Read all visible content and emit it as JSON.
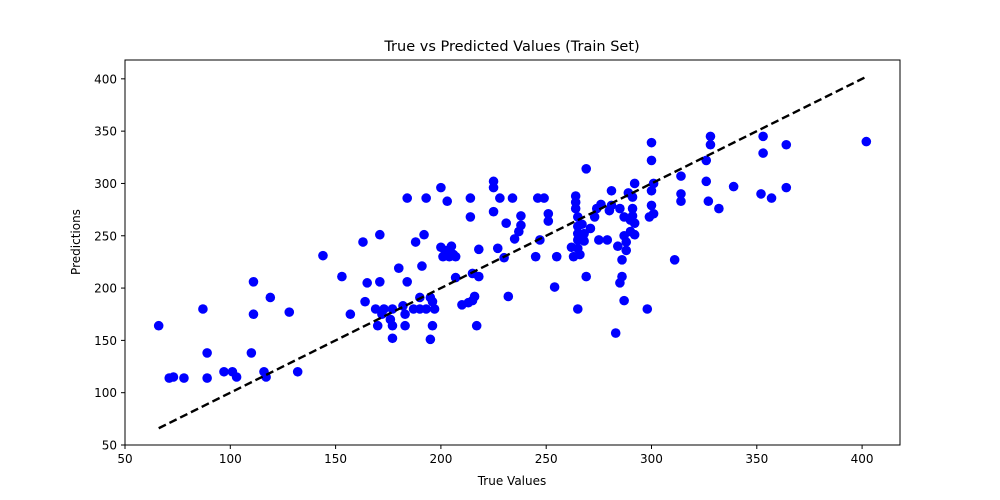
{
  "chart_data": {
    "type": "scatter",
    "title": "True vs Predicted Values (Train Set)",
    "xlabel": "True Values",
    "ylabel": "Predictions",
    "xlim": [
      50,
      418
    ],
    "ylim": [
      50,
      418
    ],
    "xticks": [
      50,
      100,
      150,
      200,
      250,
      300,
      350,
      400
    ],
    "yticks": [
      50,
      100,
      150,
      200,
      250,
      300,
      350,
      400
    ],
    "grid": false,
    "point_color": "#0000ff",
    "reference_line": {
      "style": "dashed",
      "color": "#000000",
      "from": [
        66,
        66
      ],
      "to": [
        402,
        402
      ]
    },
    "series": [
      {
        "points": [
          [
            66,
            164
          ],
          [
            71,
            114
          ],
          [
            73,
            115
          ],
          [
            78,
            114
          ],
          [
            87,
            180
          ],
          [
            89,
            138
          ],
          [
            89,
            114
          ],
          [
            97,
            120
          ],
          [
            101,
            120
          ],
          [
            103,
            115
          ],
          [
            110,
            138
          ],
          [
            111,
            206
          ],
          [
            111,
            175
          ],
          [
            116,
            120
          ],
          [
            117,
            115
          ],
          [
            119,
            191
          ],
          [
            128,
            177
          ],
          [
            132,
            120
          ],
          [
            144,
            231
          ],
          [
            153,
            211
          ],
          [
            157,
            175
          ],
          [
            163,
            244
          ],
          [
            164,
            187
          ],
          [
            165,
            205
          ],
          [
            169,
            180
          ],
          [
            170,
            164
          ],
          [
            171,
            206
          ],
          [
            171,
            251
          ],
          [
            172,
            175
          ],
          [
            173,
            180
          ],
          [
            176,
            170
          ],
          [
            177,
            164
          ],
          [
            177,
            152
          ],
          [
            177,
            180
          ],
          [
            180,
            219
          ],
          [
            182,
            183
          ],
          [
            183,
            175
          ],
          [
            183,
            164
          ],
          [
            184,
            206
          ],
          [
            184,
            286
          ],
          [
            187,
            180
          ],
          [
            188,
            244
          ],
          [
            190,
            191
          ],
          [
            190,
            180
          ],
          [
            191,
            221
          ],
          [
            192,
            251
          ],
          [
            193,
            286
          ],
          [
            193,
            180
          ],
          [
            195,
            191
          ],
          [
            195,
            151
          ],
          [
            196,
            187
          ],
          [
            196,
            164
          ],
          [
            197,
            180
          ],
          [
            200,
            296
          ],
          [
            200,
            239
          ],
          [
            201,
            230
          ],
          [
            202,
            233
          ],
          [
            203,
            283
          ],
          [
            203,
            236
          ],
          [
            204,
            230
          ],
          [
            205,
            240
          ],
          [
            206,
            232
          ],
          [
            207,
            230
          ],
          [
            207,
            210
          ],
          [
            210,
            184
          ],
          [
            213,
            186
          ],
          [
            214,
            268
          ],
          [
            214,
            286
          ],
          [
            215,
            188
          ],
          [
            215,
            214
          ],
          [
            216,
            192
          ],
          [
            217,
            164
          ],
          [
            218,
            211
          ],
          [
            218,
            237
          ],
          [
            225,
            296
          ],
          [
            225,
            302
          ],
          [
            225,
            273
          ],
          [
            227,
            238
          ],
          [
            228,
            286
          ],
          [
            230,
            229
          ],
          [
            231,
            262
          ],
          [
            232,
            192
          ],
          [
            234,
            286
          ],
          [
            235,
            247
          ],
          [
            237,
            254
          ],
          [
            238,
            260
          ],
          [
            238,
            269
          ],
          [
            245,
            230
          ],
          [
            246,
            286
          ],
          [
            247,
            246
          ],
          [
            249,
            286
          ],
          [
            251,
            264
          ],
          [
            251,
            271
          ],
          [
            254,
            201
          ],
          [
            255,
            230
          ],
          [
            262,
            239
          ],
          [
            263,
            230
          ],
          [
            264,
            288
          ],
          [
            264,
            282
          ],
          [
            264,
            276
          ],
          [
            265,
            268
          ],
          [
            265,
            259
          ],
          [
            265,
            252
          ],
          [
            265,
            246
          ],
          [
            265,
            238
          ],
          [
            265,
            180
          ],
          [
            266,
            232
          ],
          [
            267,
            261
          ],
          [
            268,
            252
          ],
          [
            268,
            245
          ],
          [
            269,
            211
          ],
          [
            269,
            314
          ],
          [
            271,
            257
          ],
          [
            273,
            268
          ],
          [
            274,
            276
          ],
          [
            275,
            246
          ],
          [
            276,
            280
          ],
          [
            279,
            246
          ],
          [
            280,
            274
          ],
          [
            281,
            293
          ],
          [
            281,
            279
          ],
          [
            283,
            157
          ],
          [
            284,
            240
          ],
          [
            285,
            276
          ],
          [
            285,
            205
          ],
          [
            286,
            227
          ],
          [
            286,
            211
          ],
          [
            287,
            268
          ],
          [
            287,
            250
          ],
          [
            287,
            188
          ],
          [
            288,
            244
          ],
          [
            288,
            236
          ],
          [
            289,
            291
          ],
          [
            290,
            254
          ],
          [
            290,
            265
          ],
          [
            291,
            287
          ],
          [
            291,
            276
          ],
          [
            291,
            269
          ],
          [
            292,
            262
          ],
          [
            292,
            300
          ],
          [
            292,
            251
          ],
          [
            298,
            180
          ],
          [
            299,
            268
          ],
          [
            300,
            339
          ],
          [
            300,
            322
          ],
          [
            300,
            293
          ],
          [
            300,
            279
          ],
          [
            301,
            271
          ],
          [
            301,
            300
          ],
          [
            311,
            227
          ],
          [
            314,
            307
          ],
          [
            314,
            290
          ],
          [
            314,
            283
          ],
          [
            326,
            322
          ],
          [
            326,
            302
          ],
          [
            327,
            283
          ],
          [
            328,
            345
          ],
          [
            328,
            337
          ],
          [
            332,
            276
          ],
          [
            339,
            297
          ],
          [
            352,
            290
          ],
          [
            353,
            345
          ],
          [
            353,
            329
          ],
          [
            357,
            286
          ],
          [
            364,
            337
          ],
          [
            364,
            296
          ],
          [
            402,
            340
          ]
        ]
      }
    ]
  }
}
